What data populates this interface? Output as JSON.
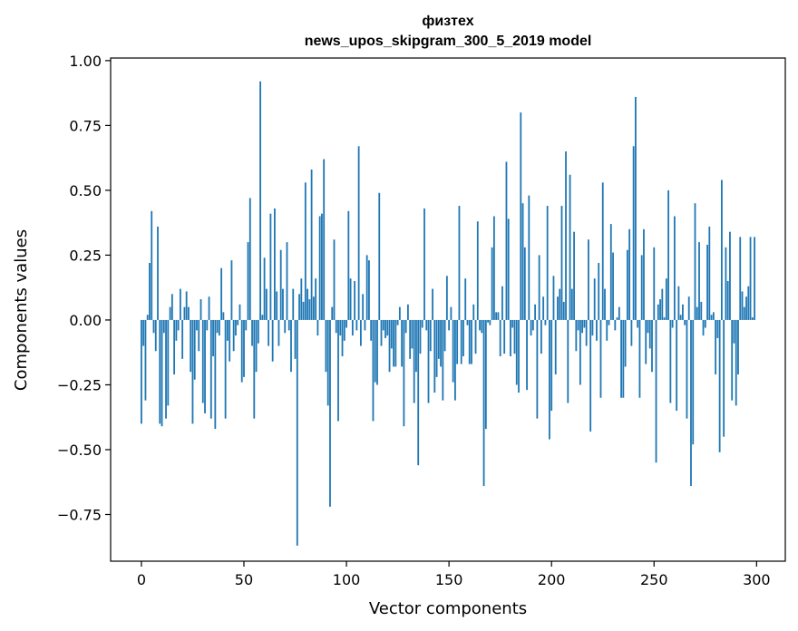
{
  "chart_data": {
    "type": "bar",
    "title_line1": "физтех",
    "title_line2": "news_upos_skipgram_300_5_2019 model",
    "xlabel": "Vector components",
    "ylabel": "Components values",
    "xlim": [
      -15,
      314
    ],
    "ylim": [
      -0.93,
      1.01
    ],
    "xticks": [
      0,
      50,
      100,
      150,
      200,
      250,
      300
    ],
    "yticks": [
      1.0,
      0.75,
      0.5,
      0.25,
      0.0,
      -0.25,
      -0.5,
      -0.75
    ],
    "ytick_labels": [
      "1.00",
      "0.75",
      "0.50",
      "0.25",
      "0.00",
      "−0.25",
      "−0.50",
      "−0.75"
    ],
    "bar_color": "#1f77b4",
    "values": [
      -0.4,
      -0.1,
      -0.31,
      0.02,
      0.22,
      0.42,
      -0.05,
      -0.12,
      0.36,
      -0.4,
      -0.41,
      -0.05,
      -0.38,
      -0.33,
      0.05,
      0.1,
      -0.21,
      -0.08,
      -0.04,
      0.12,
      -0.15,
      0.05,
      0.11,
      0.05,
      -0.2,
      -0.4,
      -0.23,
      -0.04,
      -0.12,
      0.08,
      -0.32,
      -0.36,
      -0.04,
      0.09,
      -0.38,
      -0.14,
      -0.42,
      -0.05,
      -0.06,
      0.2,
      0.03,
      -0.38,
      -0.08,
      -0.16,
      0.23,
      -0.12,
      -0.06,
      -0.02,
      0.06,
      -0.24,
      -0.22,
      -0.04,
      0.3,
      0.47,
      -0.1,
      -0.38,
      -0.2,
      -0.09,
      0.92,
      0.02,
      0.24,
      0.12,
      -0.1,
      0.41,
      -0.16,
      0.43,
      0.11,
      -0.1,
      0.27,
      0.12,
      -0.05,
      0.3,
      -0.04,
      -0.2,
      0.12,
      -0.15,
      -0.87,
      0.1,
      0.16,
      0.07,
      0.53,
      0.12,
      0.08,
      0.58,
      0.09,
      0.16,
      -0.06,
      0.4,
      0.41,
      0.62,
      -0.2,
      -0.33,
      -0.72,
      0.05,
      0.31,
      -0.05,
      -0.39,
      -0.06,
      -0.14,
      -0.08,
      -0.03,
      0.42,
      0.16,
      -0.06,
      0.15,
      -0.04,
      0.67,
      -0.1,
      0.1,
      -0.04,
      0.25,
      0.23,
      -0.08,
      -0.39,
      -0.24,
      -0.25,
      0.49,
      -0.1,
      -0.04,
      -0.07,
      -0.06,
      -0.2,
      -0.11,
      -0.18,
      -0.18,
      -0.02,
      0.05,
      -0.18,
      -0.41,
      -0.05,
      0.06,
      -0.15,
      -0.11,
      -0.32,
      -0.2,
      -0.56,
      -0.13,
      -0.03,
      0.43,
      -0.04,
      -0.32,
      -0.12,
      0.12,
      -0.28,
      -0.22,
      -0.15,
      -0.18,
      -0.31,
      -0.12,
      0.17,
      -0.04,
      0.05,
      -0.24,
      -0.31,
      -0.17,
      0.44,
      -0.17,
      -0.14,
      0.16,
      -0.02,
      -0.17,
      -0.17,
      0.06,
      -0.13,
      0.38,
      -0.04,
      -0.05,
      -0.64,
      -0.42,
      -0.01,
      -0.02,
      0.28,
      0.4,
      0.03,
      0.03,
      -0.14,
      0.13,
      -0.13,
      0.61,
      0.39,
      -0.14,
      -0.03,
      -0.13,
      -0.25,
      -0.28,
      0.8,
      0.45,
      0.28,
      -0.27,
      0.48,
      -0.06,
      -0.04,
      0.06,
      -0.38,
      0.25,
      -0.13,
      0.09,
      -0.02,
      0.44,
      -0.46,
      -0.35,
      0.17,
      -0.21,
      0.09,
      0.12,
      0.44,
      0.07,
      0.65,
      -0.32,
      0.56,
      0.12,
      0.34,
      -0.12,
      -0.04,
      -0.25,
      -0.05,
      -0.03,
      -0.1,
      0.31,
      -0.43,
      -0.06,
      0.16,
      -0.08,
      0.22,
      -0.3,
      0.53,
      0.12,
      -0.08,
      -0.02,
      0.37,
      0.26,
      -0.04,
      0.01,
      0.05,
      -0.3,
      -0.3,
      -0.18,
      0.27,
      0.35,
      -0.1,
      0.67,
      0.86,
      -0.03,
      -0.3,
      0.25,
      0.35,
      -0.17,
      -0.05,
      -0.11,
      -0.2,
      0.28,
      -0.55,
      0.06,
      0.08,
      0.12,
      0.01,
      0.16,
      0.5,
      -0.32,
      -0.03,
      0.4,
      -0.35,
      0.13,
      0.02,
      0.06,
      -0.02,
      -0.38,
      0.09,
      -0.64,
      -0.48,
      0.45,
      0.05,
      0.3,
      0.07,
      -0.06,
      -0.03,
      0.29,
      0.36,
      0.02,
      0.03,
      -0.21,
      -0.07,
      -0.51,
      0.54,
      -0.45,
      0.28,
      0.15,
      0.34,
      -0.31,
      -0.09,
      -0.33,
      -0.21,
      0.32,
      0.11,
      0.05,
      0.09,
      0.13,
      0.32,
      0.01,
      0.32
    ]
  }
}
